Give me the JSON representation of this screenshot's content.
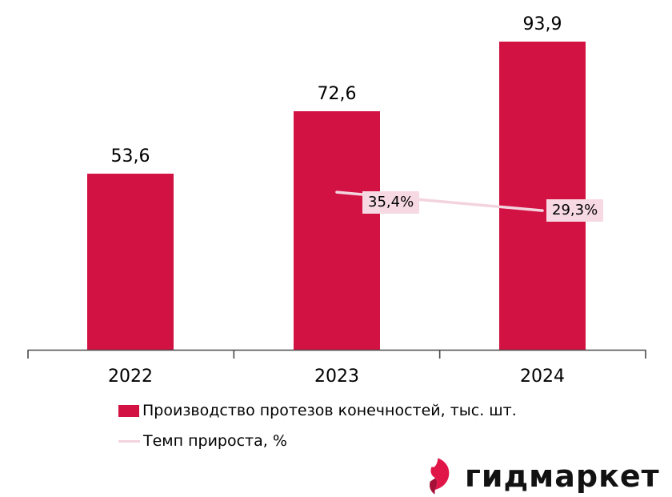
{
  "chart_data": {
    "type": "bar",
    "categories": [
      "2022",
      "2023",
      "2024"
    ],
    "series": [
      {
        "name": "Производство протезов конечностей, тыс. шт.",
        "type": "bar",
        "values": [
          53.6,
          72.6,
          93.9
        ],
        "value_labels": [
          "53,6",
          "72,6",
          "93,9"
        ],
        "color": "#d11243"
      },
      {
        "name": "Темп прироста, %",
        "type": "line",
        "values": [
          null,
          35.4,
          29.3
        ],
        "value_labels": [
          null,
          "35,4%",
          "29,3%"
        ],
        "color": "#f3d4de",
        "label_bg": "#f7d9e3"
      }
    ],
    "title": "",
    "xlabel": "",
    "ylabel": "",
    "ylim": [
      0,
      105
    ],
    "grid": false,
    "value_axis_visible": false,
    "legend_position": "bottom-left"
  },
  "legend": {
    "items": [
      {
        "label": "Производство протезов конечностей, тыс. шт.",
        "swatch": "bar-swatch",
        "color": "#d11243"
      },
      {
        "label": "Темп прироста, %",
        "swatch": "line-swatch",
        "color": "#f3d4de"
      }
    ]
  },
  "logo": {
    "text": "гидмаркет",
    "icon": "gidmarket-flame-icon",
    "icon_color": "#e11648",
    "icon_fold_color": "#a50f38"
  },
  "colors": {
    "bar": "#d11243",
    "growth_line": "#f3d4de",
    "growth_label_bg": "#f7d9e3",
    "axis": "#4a4a4a",
    "text": "#000000",
    "background": "#ffffff"
  }
}
